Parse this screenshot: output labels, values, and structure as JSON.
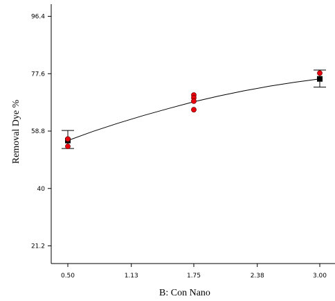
{
  "chart_data": {
    "type": "scatter",
    "xlabel": "B: Con Nano",
    "ylabel": "Removal Dye %",
    "xlim": [
      0.3,
      3.2
    ],
    "ylim": [
      12,
      105
    ],
    "x_ticks": [
      "0.50",
      "1.13",
      "1.75",
      "2.38",
      "3.00"
    ],
    "y_ticks": [
      "21.2",
      "40",
      "58.8",
      "77.6",
      "96.4"
    ],
    "grid": false,
    "legend": "none",
    "colors": {
      "design_point": "#e8000c",
      "mean": "#000000",
      "curve": "#000000",
      "axis": "#000000"
    },
    "series": [
      {
        "kind": "design-points",
        "x": [
          0.5,
          0.5,
          1.75,
          1.75,
          1.75,
          1.75,
          3.0
        ],
        "y": [
          53.8,
          56.2,
          70.6,
          69.7,
          68.6,
          65.8,
          77.8
        ]
      },
      {
        "kind": "prediction-mean",
        "x": [
          0.5,
          3.0
        ],
        "y": [
          55.7,
          75.9
        ]
      },
      {
        "kind": "fitted-curve",
        "x": [
          0.5,
          0.75,
          1.0,
          1.25,
          1.5,
          1.75,
          2.0,
          2.25,
          2.5,
          2.75,
          3.0
        ],
        "y": [
          55.7,
          58.7,
          61.4,
          63.9,
          66.2,
          68.4,
          70.3,
          72.0,
          73.5,
          74.8,
          75.9
        ]
      },
      {
        "kind": "confidence-bars",
        "x": [
          0.5,
          3.0
        ],
        "low": [
          53.1,
          73.2
        ],
        "high": [
          59.0,
          78.8
        ]
      }
    ]
  }
}
